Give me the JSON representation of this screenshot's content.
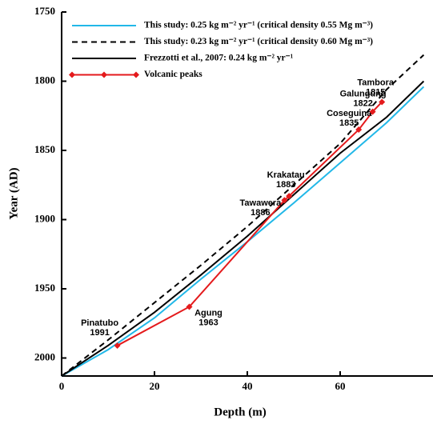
{
  "chart_data": {
    "type": "line",
    "x_label": "Depth (m)",
    "y_label": "Year (AD)",
    "xlim": [
      0,
      80
    ],
    "xticks": [
      0,
      20,
      40,
      60
    ],
    "ylim": [
      1750,
      2013
    ],
    "yticks": [
      1750,
      1800,
      1850,
      1900,
      1950,
      2000
    ],
    "y_inverted": true,
    "legend": "top-left",
    "series": [
      {
        "name": "This study: 0.25 kg m⁻² yr⁻¹ (critical density 0.55 Mg m⁻³)",
        "color": "#22b8e8",
        "style": "solid",
        "x": [
          0,
          10,
          20,
          30,
          40,
          50,
          60,
          70,
          78
        ],
        "values": [
          2013,
          1994,
          1971,
          1943,
          1916,
          1888,
          1859,
          1830,
          1804
        ]
      },
      {
        "name": "This study: 0.23 kg m⁻² yr⁻¹ (critical density 0.60 Mg m⁻³)",
        "color": "#000000",
        "style": "dashed",
        "x": [
          0,
          10,
          20,
          30,
          40,
          50,
          60,
          70,
          78
        ],
        "values": [
          2013,
          1987,
          1960,
          1933,
          1905,
          1875,
          1845,
          1806,
          1781
        ]
      },
      {
        "name": "Frezzotti et al., 2007: 0.24 kg m⁻² yr⁻¹",
        "color": "#000000",
        "style": "solid",
        "x": [
          0,
          10,
          20,
          30,
          40,
          50,
          60,
          70,
          78
        ],
        "values": [
          2013,
          1991,
          1967,
          1940,
          1912,
          1882,
          1852,
          1826,
          1800
        ]
      },
      {
        "name": "Volcanic peaks",
        "color": "#e41a1c",
        "style": "markers",
        "x": [
          12,
          27.5,
          48,
          49,
          64,
          67,
          69
        ],
        "values": [
          1991,
          1963,
          1886,
          1883,
          1835,
          1822,
          1815
        ],
        "point_labels": [
          "Pinatubo",
          "Agung",
          "Tawawera",
          "Krakatau",
          "Coseguina",
          "Galungung",
          "Tambora"
        ]
      }
    ]
  }
}
